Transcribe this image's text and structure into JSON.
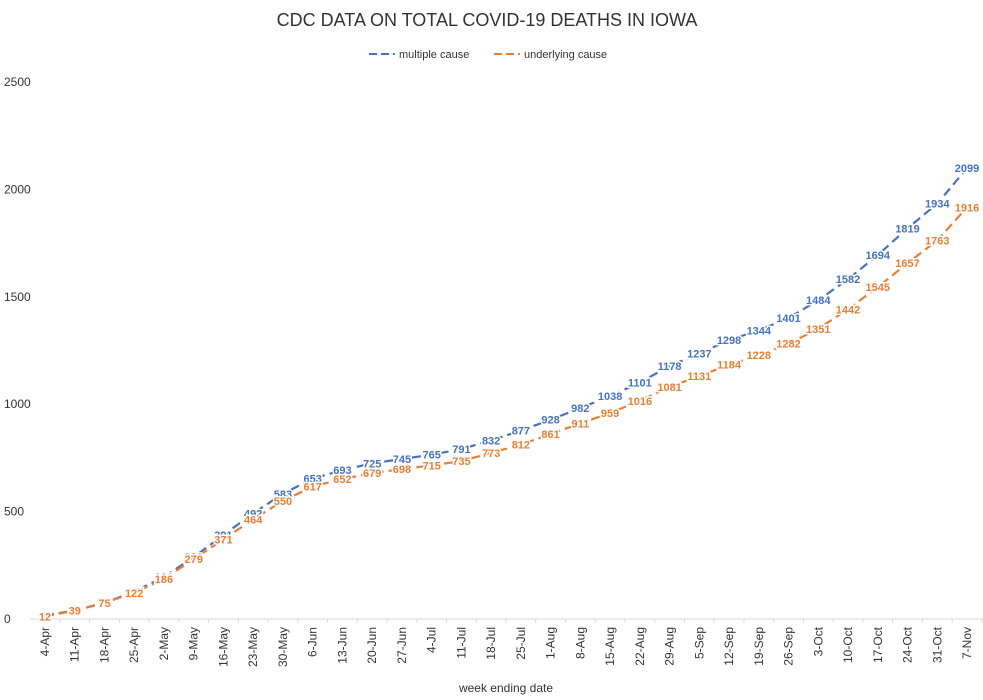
{
  "chart_data": {
    "type": "line",
    "title": "CDC DATA ON TOTAL COVID-19 DEATHS IN IOWA",
    "xlabel": "week ending date",
    "ylabel": "",
    "ylim": [
      0,
      2500
    ],
    "yticks": [
      "0",
      "500",
      "1000",
      "1500",
      "2000",
      "2500"
    ],
    "grid": false,
    "legend_position": "top",
    "categories": [
      "4-Apr",
      "11-Apr",
      "18-Apr",
      "25-Apr",
      "2-May",
      "9-May",
      "16-May",
      "23-May",
      "30-May",
      "6-Jun",
      "13-Jun",
      "20-Jun",
      "27-Jun",
      "4-Jul",
      "11-Jul",
      "18-Jul",
      "25-Jul",
      "1-Aug",
      "8-Aug",
      "15-Aug",
      "22-Aug",
      "29-Aug",
      "5-Sep",
      "12-Sep",
      "19-Sep",
      "26-Sep",
      "3-Oct",
      "10-Oct",
      "17-Oct",
      "24-Oct",
      "31-Oct",
      "7-Nov"
    ],
    "series": [
      {
        "name": "multiple cause",
        "color": "#4472C4",
        "line_style": "dashed",
        "values": [
          17,
          39,
          75,
          127,
          196,
          288,
          391,
          492,
          583,
          653,
          693,
          725,
          745,
          765,
          791,
          832,
          877,
          928,
          982,
          1038,
          1101,
          1178,
          1237,
          1298,
          1344,
          1401,
          1484,
          1582,
          1694,
          1819,
          1934,
          2099
        ]
      },
      {
        "name": "underlying cause",
        "color": "#ED7D31",
        "line_style": "dashed",
        "values": [
          12,
          39,
          75,
          122,
          186,
          279,
          371,
          464,
          550,
          617,
          652,
          679,
          698,
          715,
          735,
          773,
          812,
          861,
          911,
          959,
          1016,
          1081,
          1131,
          1184,
          1228,
          1282,
          1351,
          1442,
          1545,
          1657,
          1763,
          1916
        ]
      }
    ]
  }
}
